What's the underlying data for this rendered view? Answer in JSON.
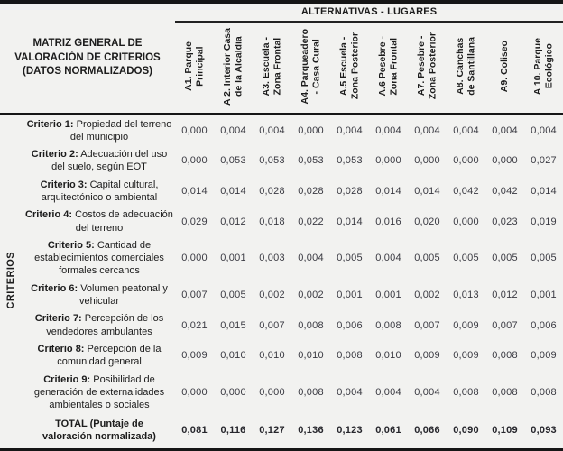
{
  "colors": {
    "background": "#f2f2f0",
    "border": "#161616",
    "label_text": "#1c1c1c",
    "value_text": "#3a3a42"
  },
  "header": {
    "title": "MATRIZ GENERAL DE\nVALORACIÓN DE CRITERIOS\n(DATOS NORMALIZADOS)",
    "alternatives_label": "ALTERNATIVAS - LUGARES"
  },
  "criterios_axis_label": "CRITERIOS",
  "columns": [
    "A1. Parque\nPrincipal",
    "A 2. Interior Casa\nde la Alcaldía",
    "A3. Escuela -\nZona Frontal",
    "A4. Parqueadero\n- Casa Cural",
    "A.5 Escuela -\nZona Posterior",
    "A.6 Pesebre -\nZona Frontal",
    "A7. Pesebre -\nZona Posterior",
    "A8. Canchas\nde Santillana",
    "A9. Coliseo",
    "A 10. Parque\nEcológico"
  ],
  "rows": [
    {
      "prefix": "Criterio 1:",
      "label": "Propiedad del terreno del municipio",
      "values": [
        "0,000",
        "0,004",
        "0,004",
        "0,000",
        "0,004",
        "0,004",
        "0,004",
        "0,004",
        "0,004",
        "0,004"
      ]
    },
    {
      "prefix": "Criterio 2:",
      "label": "Adecuación del uso del suelo, según EOT",
      "values": [
        "0,000",
        "0,053",
        "0,053",
        "0,053",
        "0,053",
        "0,000",
        "0,000",
        "0,000",
        "0,000",
        "0,027"
      ]
    },
    {
      "prefix": "Criterio 3:",
      "label": "Capital cultural, arquitectónico o ambiental",
      "values": [
        "0,014",
        "0,014",
        "0,028",
        "0,028",
        "0,028",
        "0,014",
        "0,014",
        "0,042",
        "0,042",
        "0,014"
      ]
    },
    {
      "prefix": "Criterio 4:",
      "label": "Costos de adecuación del terreno",
      "values": [
        "0,029",
        "0,012",
        "0,018",
        "0,022",
        "0,014",
        "0,016",
        "0,020",
        "0,000",
        "0,023",
        "0,019"
      ]
    },
    {
      "prefix": "Criterio 5:",
      "label": "Cantidad de establecimientos comerciales formales cercanos",
      "values": [
        "0,000",
        "0,001",
        "0,003",
        "0,004",
        "0,005",
        "0,004",
        "0,005",
        "0,005",
        "0,005",
        "0,005"
      ]
    },
    {
      "prefix": "Criterio 6:",
      "label": "Volumen peatonal y vehicular",
      "values": [
        "0,007",
        "0,005",
        "0,002",
        "0,002",
        "0,001",
        "0,001",
        "0,002",
        "0,013",
        "0,012",
        "0,001"
      ]
    },
    {
      "prefix": "Criterio 7:",
      "label": "Percepción de los vendedores ambulantes",
      "values": [
        "0,021",
        "0,015",
        "0,007",
        "0,008",
        "0,006",
        "0,008",
        "0,007",
        "0,009",
        "0,007",
        "0,006"
      ]
    },
    {
      "prefix": "Criterio 8:",
      "label": "Percepción de la comunidad general",
      "values": [
        "0,009",
        "0,010",
        "0,010",
        "0,010",
        "0,008",
        "0,010",
        "0,009",
        "0,009",
        "0,008",
        "0,009"
      ]
    },
    {
      "prefix": "Criterio 9:",
      "label": "Posibilidad de generación de externalidades ambientales o sociales",
      "values": [
        "0,000",
        "0,000",
        "0,000",
        "0,008",
        "0,004",
        "0,004",
        "0,004",
        "0,008",
        "0,008",
        "0,008"
      ]
    }
  ],
  "total_row": {
    "label": "TOTAL (Puntaje de\nvaloración normalizada)",
    "values": [
      "0,081",
      "0,116",
      "0,127",
      "0,136",
      "0,123",
      "0,061",
      "0,066",
      "0,090",
      "0,109",
      "0,093"
    ]
  }
}
